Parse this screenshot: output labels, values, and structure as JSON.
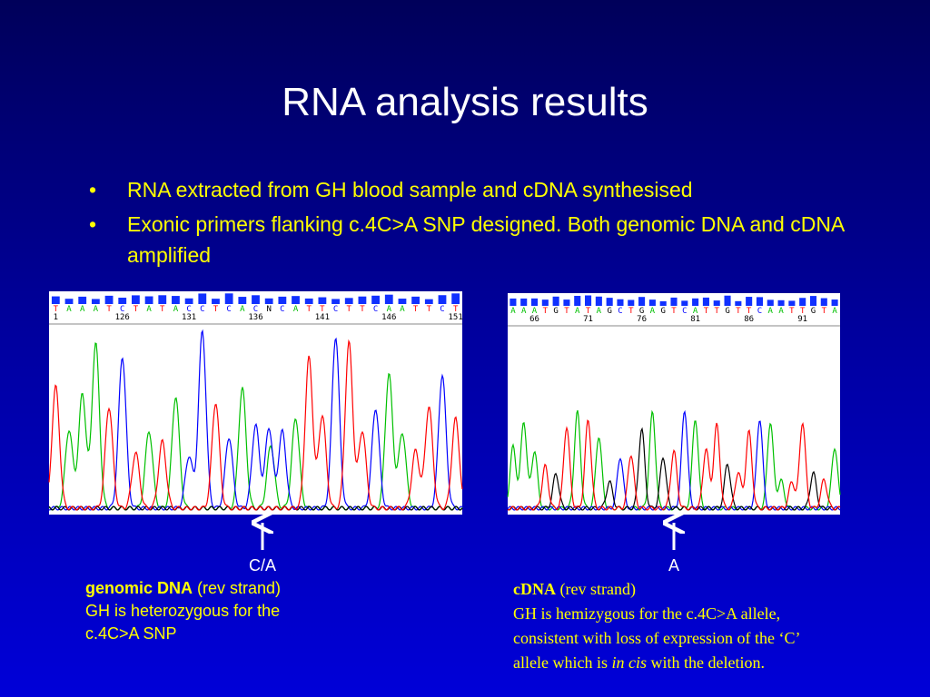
{
  "title": "RNA analysis results",
  "bullets": [
    "RNA extracted from GH blood sample and cDNA synthesised",
    "Exonic primers flanking c.4C>A SNP designed. Both genomic DNA and cDNA amplified"
  ],
  "left_panel": {
    "bases": [
      "T",
      "A",
      "A",
      "A",
      "T",
      "C",
      "T",
      "A",
      "T",
      "A",
      "C",
      "C",
      "T",
      "C",
      "A",
      "C",
      "N",
      "C",
      "A",
      "T",
      "T",
      "C",
      "T",
      "T",
      "C",
      "A",
      "A",
      "T",
      "T",
      "C",
      "T"
    ],
    "positions": [
      "1",
      "126",
      "131",
      "136",
      "141",
      "146",
      "151"
    ],
    "marker": "C/A",
    "caption": {
      "heading": "genomic DNA",
      "note": "(rev strand)",
      "lines": [
        "GH is heterozygous for the",
        "c.4C>A SNP"
      ]
    }
  },
  "right_panel": {
    "bases": [
      "A",
      "A",
      "A",
      "T",
      "G",
      "T",
      "A",
      "T",
      "A",
      "G",
      "C",
      "T",
      "G",
      "A",
      "G",
      "T",
      "C",
      "A",
      "T",
      "T",
      "G",
      "T",
      "T",
      "C",
      "A",
      "A",
      "T",
      "T",
      "G",
      "T",
      "A"
    ],
    "positions": [
      "66",
      "71",
      "76",
      "81",
      "86",
      "91"
    ],
    "marker": "A",
    "caption": {
      "heading": "cDNA",
      "note": "(rev strand)",
      "lines": [
        "GH is hemizygous for the c.4C>A allele,",
        "consistent with loss of expression of the ‘C’"
      ],
      "last_line": [
        "allele which is",
        "in cis",
        "with the deletion."
      ]
    }
  }
}
